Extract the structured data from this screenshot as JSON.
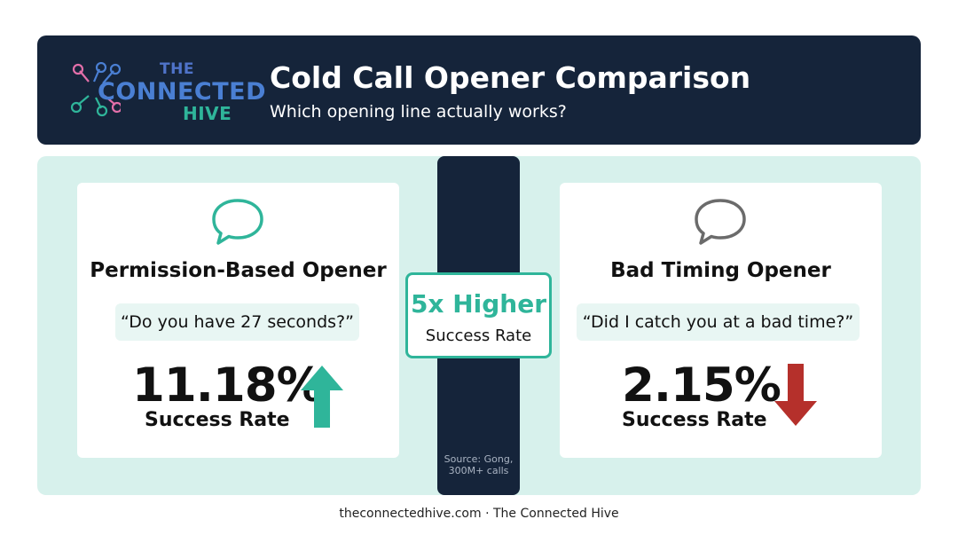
{
  "header": {
    "logo": {
      "the": "THE",
      "connected": "CONNECTED",
      "hive": "HIVE"
    },
    "title": "Cold Call Opener Comparison",
    "subtitle": "Which opening line actually works?"
  },
  "left_card": {
    "icon": "speech-bubble-icon",
    "title": "Permission-Based Opener",
    "quote": "“Do you have 27 seconds?”",
    "percentage": "11.18%",
    "rate_label": "Success Rate",
    "trend": "up-arrow-icon",
    "color": "#2fb59a"
  },
  "center": {
    "badge_big": "5x Higher",
    "badge_small": "Success Rate",
    "source": "Source: Gong, 300M+ calls"
  },
  "right_card": {
    "icon": "speech-bubble-icon",
    "title": "Bad Timing Opener",
    "quote": "“Did I catch you at a bad time?”",
    "percentage": "2.15%",
    "rate_label": "Success Rate",
    "trend": "down-arrow-icon",
    "color": "#b5302b"
  },
  "footer": "theconnectedhive.com · The Connected Hive"
}
